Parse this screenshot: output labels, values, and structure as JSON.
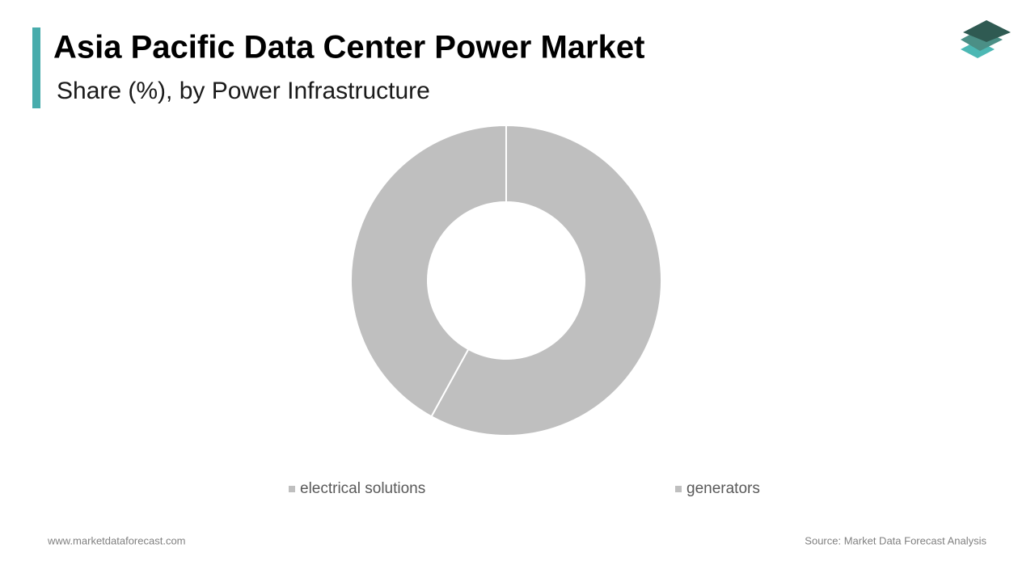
{
  "chart_data": {
    "type": "donut",
    "title": "Asia Pacific Data Center Power Market",
    "subtitle": "Share (%), by Power Infrastructure",
    "categories": [
      "electrical solutions",
      "generators"
    ],
    "values": [
      58,
      42
    ],
    "colors": [
      "#bfbfbf",
      "#bfbfbf"
    ],
    "legend": "bottom"
  },
  "footer": {
    "website": "www.marketdataforecast.com",
    "source": "Source: Market Data Forecast Analysis"
  }
}
